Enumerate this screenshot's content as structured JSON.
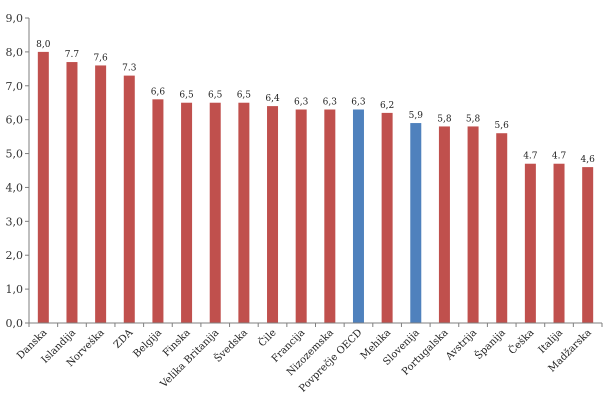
{
  "chart_data": {
    "type": "bar",
    "categories": [
      "Danska",
      "Islandija",
      "Norveška",
      "ZDA",
      "Belgija",
      "Finska",
      "Velika Britanija",
      "Švedska",
      "Čile",
      "Francija",
      "Nizozemska",
      "Povprečje OECD",
      "Mehika",
      "Slovenija",
      "Portugalska",
      "Avstrija",
      "Španija",
      "Češka",
      "Italija",
      "Madžarska"
    ],
    "values": [
      8.0,
      7.7,
      7.6,
      7.3,
      6.6,
      6.5,
      6.5,
      6.5,
      6.4,
      6.3,
      6.3,
      6.3,
      6.2,
      5.9,
      5.8,
      5.8,
      5.6,
      4.7,
      4.7,
      4.6
    ],
    "data_labels": [
      "8,0",
      "7.7",
      "7,6",
      "7.3",
      "6,6",
      "6,5",
      "6,5",
      "6,5",
      "6,4",
      "6,3",
      "6,3",
      "6,3",
      "6,2",
      "5,9",
      "5,8",
      "5,8",
      "5,6",
      "4.7",
      "4.7",
      "4,6"
    ],
    "highlighted": [
      "Povprečje OECD",
      "Slovenija"
    ],
    "ylim": [
      0,
      9
    ],
    "yticks": [
      "0,0",
      "1,0",
      "2,0",
      "3,0",
      "4,0",
      "5,0",
      "6,0",
      "7,0",
      "8,0",
      "9,0"
    ],
    "title": "",
    "xlabel": "",
    "ylabel": "",
    "grid": false,
    "colors": {
      "bar": "#c0504d",
      "highlight": "#4f81bd",
      "axis": "#7f7f7f"
    }
  }
}
